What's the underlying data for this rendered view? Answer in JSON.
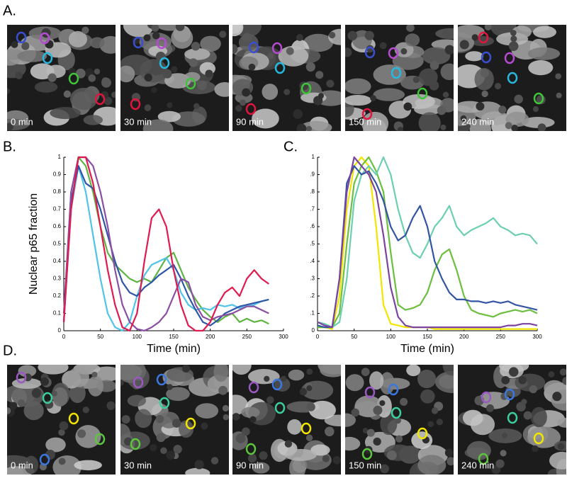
{
  "panels": [
    {
      "label": "A.",
      "images": [
        "0 min",
        "30 min",
        "90 min",
        "150 min",
        "240 min"
      ]
    },
    {
      "label": "D.",
      "images": [
        "0 min",
        "30 min",
        "90 min",
        "150 min",
        "240 min"
      ]
    }
  ],
  "chart_data": [
    {
      "type": "line",
      "label": "B.",
      "x_label": "Time (min)",
      "y_label": "Nuclear p65 fraction",
      "xlim": [
        0,
        300
      ],
      "xticks": [
        0,
        50,
        100,
        150,
        200,
        250,
        300
      ],
      "ylim": [
        0,
        1
      ],
      "yticks": [
        0,
        0.1,
        0.2,
        0.3,
        0.4,
        0.5,
        0.6,
        0.7,
        0.8,
        0.9,
        1
      ],
      "x": [
        0,
        10,
        20,
        30,
        40,
        50,
        60,
        70,
        80,
        90,
        100,
        110,
        120,
        130,
        140,
        150,
        160,
        170,
        180,
        190,
        200,
        210,
        220,
        230,
        240,
        250,
        260,
        270,
        280
      ],
      "series": [
        {
          "color": "#5db443",
          "values": [
            0.05,
            0.8,
            1,
            0.95,
            0.8,
            0.6,
            0.45,
            0.38,
            0.34,
            0.3,
            0.28,
            0.3,
            0.28,
            0.35,
            0.42,
            0.45,
            0.35,
            0.25,
            0.18,
            0.12,
            0.08,
            0.05,
            0.08,
            0.1,
            0.05,
            0.07,
            0.05,
            0.06,
            0.04
          ]
        },
        {
          "color": "#4fc3e8",
          "values": [
            0.05,
            0.7,
            0.95,
            0.8,
            0.55,
            0.3,
            0.1,
            0.02,
            0,
            0.05,
            0.2,
            0.32,
            0.38,
            0.4,
            0.42,
            0.35,
            0.22,
            0.15,
            0.12,
            0.13,
            0.12,
            0.15,
            0.14,
            0.15,
            0.13,
            0.14,
            0.15,
            0.17,
            0.18
          ]
        },
        {
          "color": "#2f56a6",
          "values": [
            0.05,
            0.75,
            0.95,
            0.85,
            0.82,
            0.7,
            0.55,
            0.4,
            0.28,
            0.22,
            0.2,
            0.25,
            0.28,
            0.32,
            0.35,
            0.38,
            0.3,
            0.2,
            0.12,
            0.05,
            0.03,
            0.06,
            0.1,
            0.12,
            0.14,
            0.15,
            0.16,
            0.17,
            0.18
          ]
        },
        {
          "color": "#8a4fa3",
          "values": [
            0.1,
            0.8,
            1,
            1,
            0.95,
            0.8,
            0.6,
            0.35,
            0.15,
            0.05,
            0.01,
            0,
            0.02,
            0.05,
            0.1,
            0.2,
            0.3,
            0.28,
            0.15,
            0.08,
            0.06,
            0.08,
            0.09,
            0.1,
            0.12,
            0.14,
            0.14,
            0.12,
            0.1
          ]
        },
        {
          "color": "#e0194f",
          "values": [
            0.05,
            0.7,
            1,
            1,
            0.85,
            0.6,
            0.35,
            0.15,
            0.02,
            0,
            0.1,
            0.4,
            0.65,
            0.7,
            0.6,
            0.35,
            0.15,
            0.03,
            0,
            0,
            0.05,
            0.15,
            0.22,
            0.25,
            0.2,
            0.3,
            0.35,
            0.3,
            0.27
          ]
        }
      ]
    },
    {
      "type": "line",
      "label": "C.",
      "x_label": "Time (min)",
      "xlim": [
        0,
        300
      ],
      "xticks": [
        0,
        50,
        100,
        150,
        200,
        250,
        300
      ],
      "ylim": [
        0,
        1
      ],
      "yticks": [
        0,
        {
          "value": 0.1,
          "label": ".1"
        },
        {
          "value": 0.2,
          "label": ".2"
        },
        {
          "value": 0.3,
          "label": ".3"
        },
        {
          "value": 0.4,
          "label": ".4"
        },
        {
          "value": 0.5,
          "label": ".5"
        },
        {
          "value": 0.6,
          "label": ".6"
        },
        {
          "value": 0.7,
          "label": ".7"
        },
        {
          "value": 0.8,
          "label": ".8"
        },
        {
          "value": 0.9,
          "label": ".9"
        },
        1
      ],
      "x": [
        0,
        10,
        20,
        30,
        40,
        50,
        60,
        70,
        80,
        90,
        100,
        110,
        120,
        130,
        140,
        150,
        160,
        170,
        180,
        190,
        200,
        210,
        220,
        230,
        240,
        250,
        260,
        270,
        280,
        290,
        300
      ],
      "series": [
        {
          "color": "#f2e600",
          "values": [
            0.02,
            0.02,
            0.01,
            0.2,
            0.7,
            0.95,
            1,
            0.95,
            0.6,
            0.15,
            0.04,
            0.03,
            0.02,
            0.02,
            0.02,
            0.02,
            0.01,
            0.01,
            0.01,
            0.01,
            0.01,
            0.01,
            0.01,
            0.01,
            0.01,
            0.01,
            0.01,
            0.01,
            0.01,
            0.01,
            0.01
          ]
        },
        {
          "color": "#6cbf3f",
          "values": [
            0.02,
            0.02,
            0.02,
            0.1,
            0.5,
            0.85,
            0.95,
            1,
            0.92,
            0.8,
            0.45,
            0.15,
            0.12,
            0.13,
            0.15,
            0.22,
            0.35,
            0.44,
            0.47,
            0.35,
            0.2,
            0.12,
            0.1,
            0.09,
            0.08,
            0.1,
            0.11,
            0.12,
            0.11,
            0.12,
            0.1
          ]
        },
        {
          "color": "#6ccfb0",
          "values": [
            0.05,
            0.04,
            0.02,
            0.05,
            0.3,
            0.75,
            0.9,
            0.95,
            0.9,
            1,
            0.9,
            0.7,
            0.55,
            0.45,
            0.42,
            0.5,
            0.6,
            0.65,
            0.72,
            0.6,
            0.55,
            0.58,
            0.6,
            0.62,
            0.65,
            0.6,
            0.58,
            0.55,
            0.56,
            0.55,
            0.5
          ]
        },
        {
          "color": "#3454a4",
          "values": [
            0.03,
            0.02,
            0.02,
            0.3,
            0.85,
            0.95,
            0.9,
            0.92,
            0.85,
            0.75,
            0.6,
            0.52,
            0.55,
            0.65,
            0.72,
            0.6,
            0.4,
            0.3,
            0.22,
            0.18,
            0.18,
            0.17,
            0.17,
            0.16,
            0.17,
            0.16,
            0.17,
            0.15,
            0.14,
            0.13,
            0.12
          ]
        },
        {
          "color": "#7b44a0",
          "values": [
            0.05,
            0.03,
            0.02,
            0.3,
            0.8,
            1,
            0.95,
            0.9,
            0.8,
            0.55,
            0.25,
            0.08,
            0.03,
            0.02,
            0.02,
            0.02,
            0.02,
            0.02,
            0.02,
            0.02,
            0.02,
            0.02,
            0.02,
            0.02,
            0.02,
            0.02,
            0.03,
            0.03,
            0.04,
            0.04,
            0.03
          ]
        }
      ]
    }
  ]
}
